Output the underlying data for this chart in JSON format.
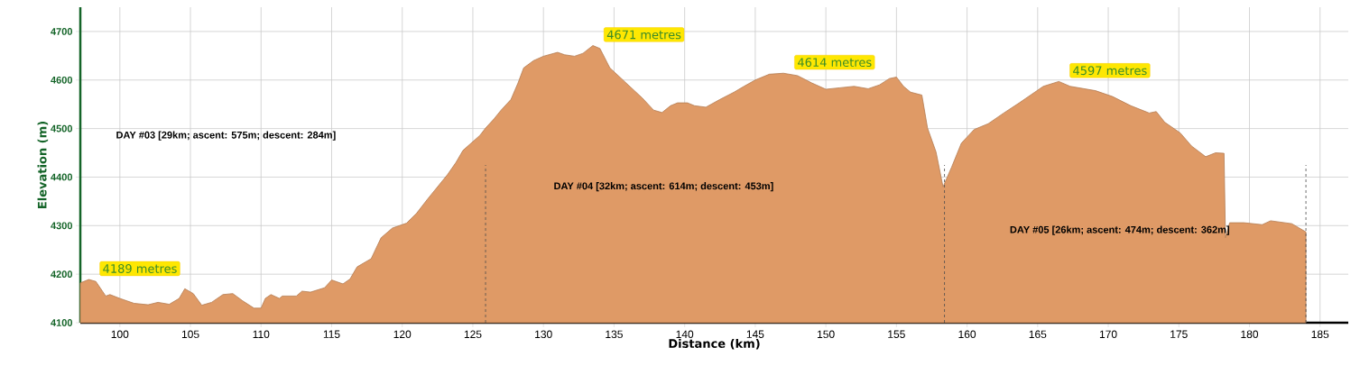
{
  "chart_data": {
    "type": "area",
    "xlabel": "Distance (km)",
    "ylabel": "Elevation (m)",
    "series": [
      {
        "color": "#df9a66",
        "x": [
          97.2,
          97.8,
          98.3,
          99.0,
          99.3,
          100,
          101,
          102,
          102.7,
          103.5,
          104.2,
          104.6,
          105.2,
          105.8,
          106.5,
          107.3,
          108.0,
          108.7,
          109.5,
          110.0,
          110.3,
          110.7,
          111.3,
          111.5,
          112.5,
          112.9,
          113.5,
          114.5,
          115.0,
          115.8,
          116.3,
          116.8,
          117.8,
          118.5,
          119.3,
          120.3,
          121,
          121.8,
          122.5,
          123.2,
          123.8,
          124.3,
          125.5,
          125.9,
          126.5,
          127,
          127.7,
          128.2,
          128.6,
          129.3,
          130,
          131,
          131.5,
          132.2,
          132.8,
          133.5,
          134.0,
          134.7,
          135.3,
          136,
          137,
          137.8,
          138.4,
          139,
          139.5,
          140.2,
          140.7,
          141.5,
          142.5,
          143.5,
          144.2,
          145,
          146,
          147,
          148,
          149,
          150,
          151,
          152,
          153,
          153.8,
          154.5,
          155,
          155.5,
          156,
          156.8,
          157.2,
          157.8,
          158.3,
          158.9,
          159.6,
          160.5,
          161.5,
          162.6,
          163.7,
          164.5,
          165.4,
          166.5,
          167.3,
          169.1,
          170.3,
          171.6,
          172.9,
          173.4,
          174.0,
          175.1,
          175.9,
          176.9,
          177.6,
          178.2,
          178.3,
          178.6,
          179.6,
          180.9,
          181.5,
          183.0,
          184.0
        ],
        "values": [
          4182,
          4189,
          4185,
          4155,
          4158,
          4150,
          4140,
          4137,
          4142,
          4138,
          4150,
          4170,
          4160,
          4136,
          4142,
          4158,
          4160,
          4145,
          4130,
          4130,
          4150,
          4158,
          4150,
          4155,
          4155,
          4165,
          4163,
          4172,
          4188,
          4180,
          4190,
          4215,
          4232,
          4275,
          4295,
          4305,
          4325,
          4355,
          4380,
          4405,
          4430,
          4455,
          4486,
          4501,
          4520,
          4538,
          4560,
          4594,
          4625,
          4640,
          4649,
          4657,
          4652,
          4649,
          4655,
          4671,
          4665,
          4625,
          4609,
          4590,
          4563,
          4538,
          4533,
          4547,
          4553,
          4553,
          4547,
          4544,
          4560,
          4575,
          4587,
          4600,
          4612,
          4614,
          4609,
          4594,
          4581,
          4584,
          4587,
          4582,
          4590,
          4603,
          4606,
          4587,
          4575,
          4569,
          4501,
          4452,
          4380,
          4420,
          4470,
          4498,
          4510,
          4532,
          4553,
          4569,
          4587,
          4597,
          4587,
          4578,
          4566,
          4547,
          4532,
          4535,
          4513,
          4491,
          4464,
          4442,
          4450,
          4449,
          4275,
          4306,
          4306,
          4302,
          4310,
          4304,
          4287
        ]
      }
    ],
    "xlim": [
      97.2,
      187
    ],
    "ylim": [
      4100,
      4750
    ],
    "xticks": [
      100,
      105,
      110,
      115,
      120,
      125,
      130,
      135,
      140,
      145,
      150,
      155,
      160,
      165,
      170,
      175,
      180,
      185
    ],
    "yticks": [
      4100,
      4200,
      4300,
      4400,
      4500,
      4600,
      4700
    ],
    "grid": true,
    "marker": "none",
    "ref_lines": [
      {
        "axis": "x",
        "value": 125.9,
        "line_style": "dashed"
      },
      {
        "axis": "x",
        "value": 158.4,
        "line_style": "dashed"
      },
      {
        "axis": "x",
        "value": 184.0,
        "line_style": "dashed"
      }
    ],
    "annotations": [
      {
        "text": "4189 metres",
        "x": 97.8,
        "y": 4189
      },
      {
        "text": "4671 metres",
        "x": 133.5,
        "y": 4671
      },
      {
        "text": "4614 metres",
        "x": 147,
        "y": 4614
      },
      {
        "text": "4597 metres",
        "x": 166.5,
        "y": 4597
      },
      "DAY #03 [29km; ascent: 575m; descent: 284m]",
      "DAY #04 [32km; ascent: 614m; descent: 453m]",
      "DAY #05 [26km; ascent: 474m; descent: 362m]"
    ]
  }
}
